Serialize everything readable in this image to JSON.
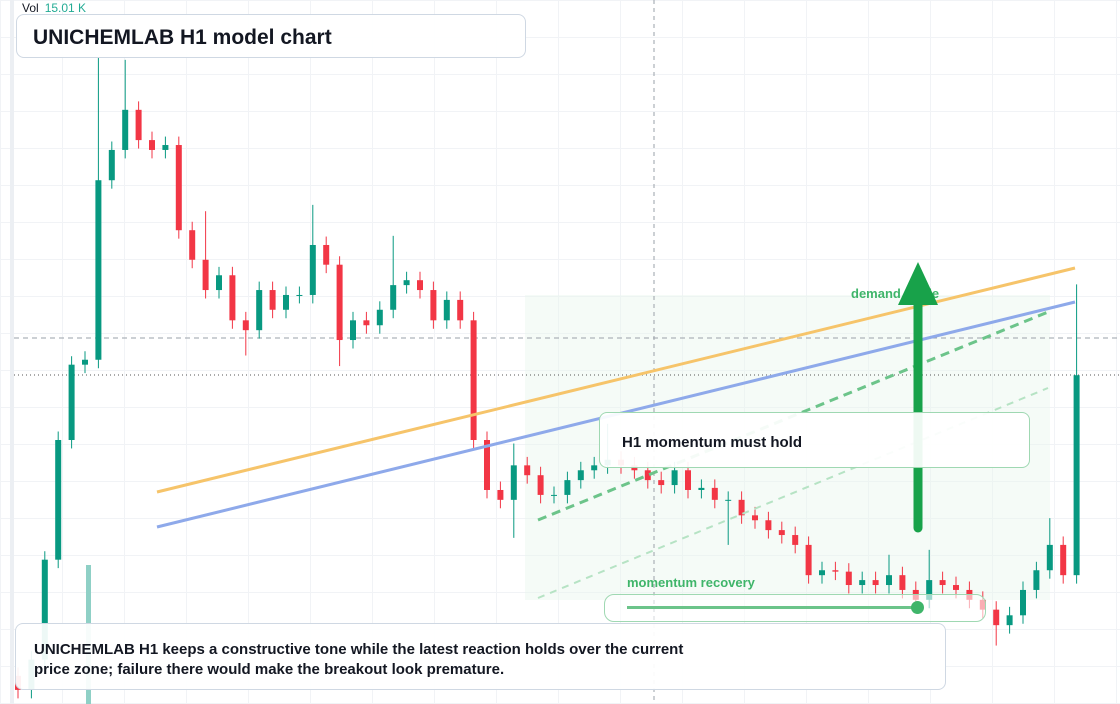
{
  "header": {
    "title": "UNICHEMLAB H1 model chart"
  },
  "volume": {
    "label": "Vol",
    "value": "15.01 K"
  },
  "chart_data": {
    "type": "candlestick",
    "ylim": [
      0,
      100
    ],
    "up_color": "#089981",
    "down_color": "#f23645",
    "open": [
      4.0,
      2.0,
      6.3,
      20.5,
      37.5,
      48.2,
      48.9,
      74.4,
      78.7,
      84.4,
      80.1,
      78.7,
      79.4,
      67.3,
      63.1,
      58.8,
      60.9,
      54.5,
      53.1,
      58.8,
      56.0,
      58.1,
      58.1,
      65.2,
      62.4,
      51.7,
      54.5,
      53.8,
      56.0,
      59.5,
      60.2,
      58.8,
      54.5,
      57.4,
      54.5,
      37.5,
      30.4,
      29.0,
      33.9,
      32.5,
      29.7,
      29.7,
      31.8,
      33.2,
      33.9,
      34.7,
      33.9,
      33.2,
      31.8,
      31.1,
      33.2,
      30.4,
      30.7,
      29.0,
      29.0,
      26.8,
      26.1,
      24.7,
      24.0,
      22.6,
      18.3,
      19.0,
      18.8,
      16.9,
      17.6,
      16.9,
      18.3,
      16.2,
      14.8,
      17.6,
      16.9,
      16.2,
      14.8,
      13.4,
      11.2,
      12.6,
      16.2,
      19.0,
      22.6,
      18.3
    ],
    "high": [
      5.2,
      7.5,
      21.7,
      38.7,
      49.4,
      50.1,
      91.8,
      79.9,
      91.5,
      85.6,
      81.3,
      80.6,
      80.6,
      68.5,
      70.0,
      62.1,
      62.1,
      55.7,
      60.0,
      60.0,
      59.3,
      59.3,
      70.9,
      66.4,
      63.6,
      55.7,
      55.7,
      57.2,
      66.5,
      61.4,
      61.4,
      60.0,
      58.6,
      58.6,
      55.7,
      38.7,
      31.6,
      37.0,
      35.1,
      33.7,
      30.9,
      33.0,
      34.4,
      35.1,
      39.8,
      35.9,
      35.1,
      34.4,
      33.0,
      34.4,
      34.4,
      31.9,
      31.9,
      30.2,
      30.2,
      28.0,
      27.3,
      25.9,
      25.2,
      23.8,
      20.2,
      20.2,
      20.0,
      18.8,
      18.8,
      21.2,
      19.5,
      17.4,
      21.9,
      18.8,
      18.1,
      17.4,
      16.0,
      14.6,
      13.8,
      17.4,
      20.2,
      26.4,
      23.8,
      59.6
    ],
    "low": [
      0.8,
      0.8,
      5.1,
      19.3,
      36.3,
      47.0,
      47.7,
      73.2,
      77.5,
      78.9,
      77.5,
      77.5,
      66.1,
      61.9,
      57.6,
      57.6,
      53.3,
      49.5,
      51.9,
      54.8,
      54.8,
      56.9,
      56.9,
      61.2,
      48.0,
      50.5,
      52.6,
      52.6,
      54.8,
      58.3,
      57.6,
      53.3,
      53.3,
      53.3,
      36.3,
      29.2,
      27.8,
      23.6,
      31.3,
      28.5,
      28.5,
      28.5,
      30.6,
      32.0,
      32.7,
      32.7,
      32.0,
      30.6,
      29.9,
      29.9,
      29.2,
      29.2,
      27.8,
      22.6,
      25.6,
      24.9,
      23.5,
      22.8,
      21.4,
      17.1,
      17.1,
      17.6,
      15.7,
      15.7,
      15.7,
      15.7,
      15.0,
      13.6,
      13.6,
      15.7,
      15.0,
      13.6,
      12.2,
      8.3,
      10.0,
      11.4,
      15.0,
      17.8,
      17.1,
      17.1
    ],
    "close": [
      2.0,
      6.3,
      20.5,
      37.5,
      48.2,
      48.9,
      74.4,
      78.7,
      84.4,
      80.1,
      78.7,
      79.4,
      67.3,
      63.1,
      58.8,
      60.9,
      54.5,
      53.1,
      58.8,
      56.0,
      58.1,
      58.1,
      65.2,
      62.4,
      51.7,
      54.5,
      53.8,
      56.0,
      59.5,
      60.2,
      58.8,
      54.5,
      57.4,
      54.5,
      37.5,
      30.4,
      29.0,
      33.9,
      32.5,
      29.7,
      29.7,
      31.8,
      33.2,
      33.9,
      34.7,
      33.9,
      33.2,
      31.8,
      31.1,
      33.2,
      30.4,
      30.7,
      29.0,
      29.0,
      26.8,
      26.1,
      24.7,
      24.0,
      22.6,
      18.3,
      19.0,
      18.8,
      16.9,
      17.6,
      16.9,
      18.3,
      16.2,
      14.8,
      17.6,
      16.9,
      16.2,
      14.8,
      13.4,
      11.2,
      12.6,
      16.2,
      19.0,
      22.6,
      18.3,
      46.7
    ]
  },
  "annotations": {
    "demand": "demand guide",
    "momentum": "H1 momentum must hold",
    "recovery": "momentum recovery"
  },
  "note": "UNICHEMLAB H1 keeps a constructive tone while the latest reaction holds over the current price zone; failure there would make the breakout look premature."
}
